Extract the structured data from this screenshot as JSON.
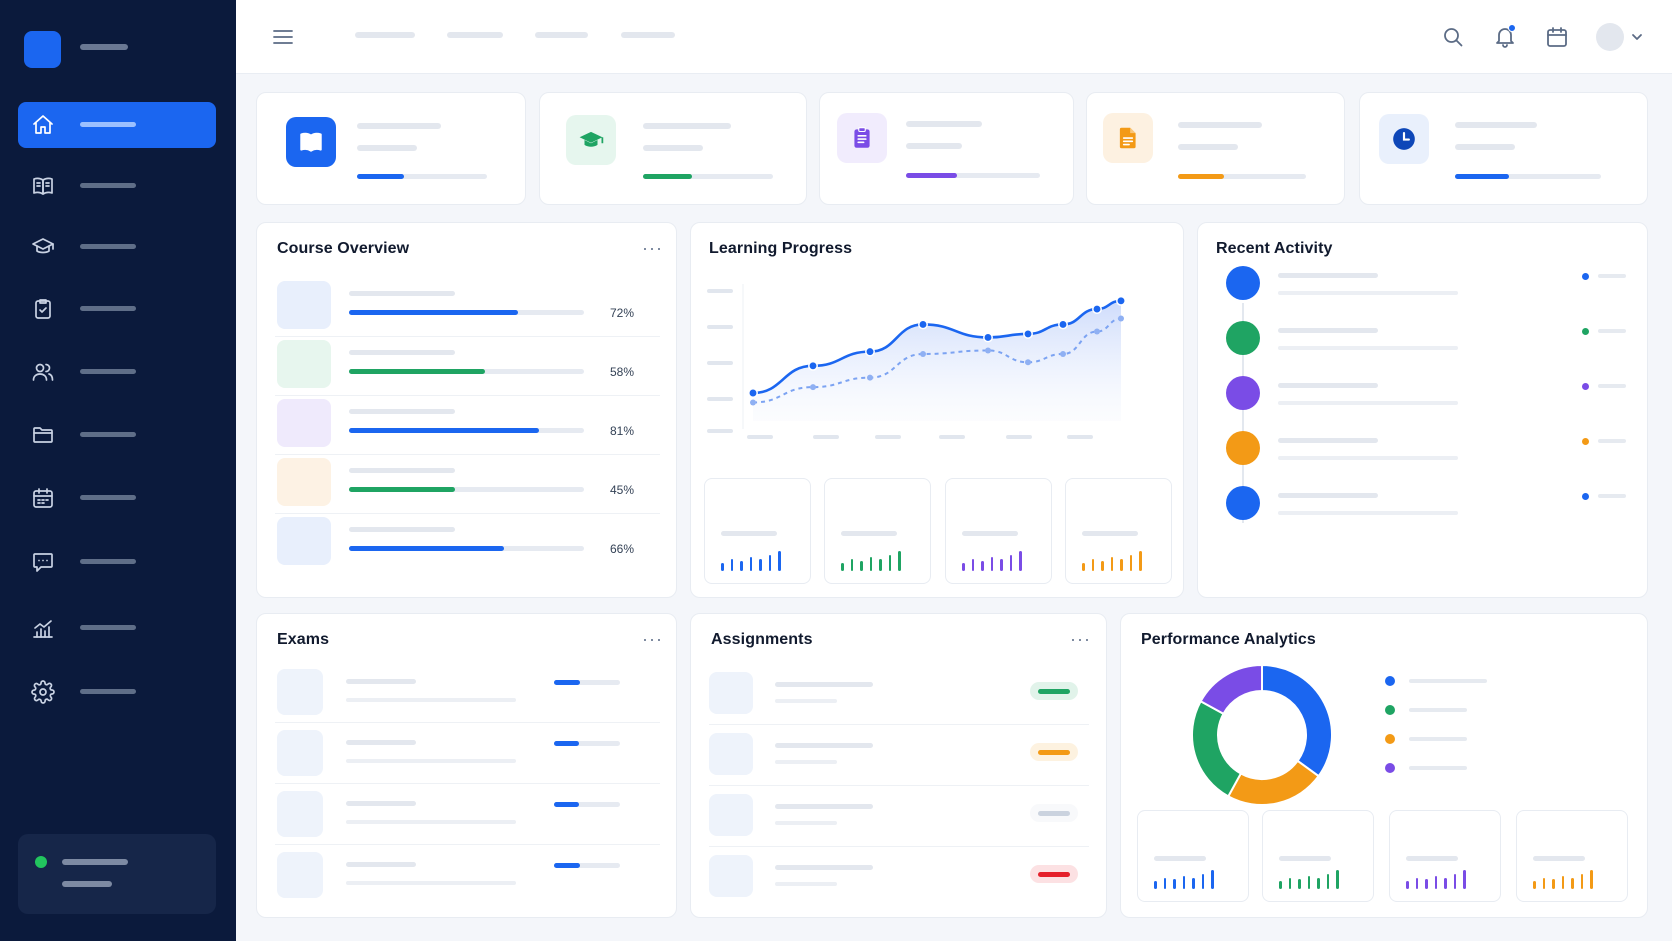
{
  "theme": {
    "accent": "#1b66f0",
    "sidebar_bg": "#0b1a3c",
    "green": "#1fa463",
    "purple": "#7a4ce6",
    "orange": "#f39a16",
    "red": "#e5202b"
  },
  "sidebar": {
    "items": [
      {
        "icon": "home-icon",
        "active": true
      },
      {
        "icon": "book-icon"
      },
      {
        "icon": "graduation-cap-icon"
      },
      {
        "icon": "clipboard-check-icon"
      },
      {
        "icon": "users-icon"
      },
      {
        "icon": "folder-icon"
      },
      {
        "icon": "calendar-icon"
      },
      {
        "icon": "chat-icon"
      },
      {
        "icon": "analytics-icon"
      },
      {
        "icon": "settings-icon"
      }
    ],
    "status_color": "#22c55e"
  },
  "topbar": {
    "icons": [
      "menu-icon",
      "search-icon",
      "bell-icon",
      "calendar-icon",
      "avatar",
      "chevron-down-icon"
    ]
  },
  "stats": [
    {
      "icon": "book-icon",
      "color": "#1b66f0",
      "progress": 0.36
    },
    {
      "icon": "graduation-cap-icon",
      "color": "#1fa463",
      "progress": 0.38
    },
    {
      "icon": "clipboard-icon",
      "color": "#7a4ce6",
      "progress": 0.38
    },
    {
      "icon": "document-icon",
      "color": "#f39a16",
      "progress": 0.36
    },
    {
      "icon": "clock-icon",
      "color": "#1b66f0",
      "progress": 0.37
    }
  ],
  "course_overview": {
    "title": "Course Overview",
    "courses": [
      {
        "icon": "book-icon",
        "progress": 0.72,
        "percent": "72%",
        "color": "#1b66f0"
      },
      {
        "icon": "code-monitor-icon",
        "progress": 0.58,
        "percent": "58%",
        "color": "#1fa463"
      },
      {
        "icon": "flask-icon",
        "progress": 0.81,
        "percent": "81%",
        "color": "#1b66f0"
      },
      {
        "icon": "chart-icon",
        "progress": 0.45,
        "percent": "45%",
        "color": "#1fa463"
      },
      {
        "icon": "globe-icon",
        "progress": 0.66,
        "percent": "66%",
        "color": "#1b66f0"
      }
    ]
  },
  "learning_progress": {
    "title": "Learning Progress",
    "chart_data": {
      "type": "line",
      "series": [
        {
          "values": [
            22,
            45,
            57,
            80,
            69,
            72,
            80,
            93,
            100
          ]
        },
        {
          "values": [
            14,
            27,
            35,
            55,
            58,
            48,
            55,
            74,
            85
          ]
        }
      ],
      "ylim": [
        0,
        110
      ]
    },
    "mini_cards": [
      {
        "icon": "book-icon",
        "color": "#1b66f0"
      },
      {
        "icon": "graduation-cap-icon",
        "color": "#1fa463"
      },
      {
        "icon": "clock-icon",
        "color": "#7a4ce6"
      },
      {
        "icon": "star-icon",
        "color": "#f39a16"
      }
    ]
  },
  "recent_activity": {
    "title": "Recent Activity",
    "items": [
      {
        "icon": "document-icon",
        "color": "#1b66f0"
      },
      {
        "icon": "cloud-upload-icon",
        "color": "#1fa463"
      },
      {
        "icon": "check-icon",
        "color": "#7a4ce6"
      },
      {
        "icon": "notes-icon",
        "color": "#f39a16"
      },
      {
        "icon": "chat-icon",
        "color": "#1b66f0"
      }
    ]
  },
  "exams": {
    "title": "Exams",
    "items": [
      {
        "icon": "clipboard-icon",
        "progress": 0.4
      },
      {
        "icon": "question-icon",
        "progress": 0.38
      },
      {
        "icon": "calendar-icon",
        "progress": 0.38
      },
      {
        "icon": "document-icon",
        "progress": 0.4
      }
    ]
  },
  "assignments": {
    "title": "Assignments",
    "items": [
      {
        "status_color": "#1fa463"
      },
      {
        "status_color": "#f39a16"
      },
      {
        "status_color": "#cbd3df"
      },
      {
        "status_color": "#e5202b"
      }
    ]
  },
  "performance_analytics": {
    "title": "Performance Analytics",
    "chart_data": {
      "type": "pie",
      "values": [
        35,
        23,
        25,
        17
      ],
      "colors": [
        "#1b66f0",
        "#f39a16",
        "#1fa463",
        "#7a4ce6"
      ]
    },
    "legend_colors": [
      "#1b66f0",
      "#1fa463",
      "#f39a16",
      "#7a4ce6"
    ],
    "mini_cards": [
      {
        "icon": "user-icon",
        "color": "#1b66f0"
      },
      {
        "icon": "book-icon",
        "color": "#1fa463"
      },
      {
        "icon": "trophy-icon",
        "color": "#7a4ce6"
      },
      {
        "icon": "pie-icon",
        "color": "#f39a16"
      }
    ]
  }
}
